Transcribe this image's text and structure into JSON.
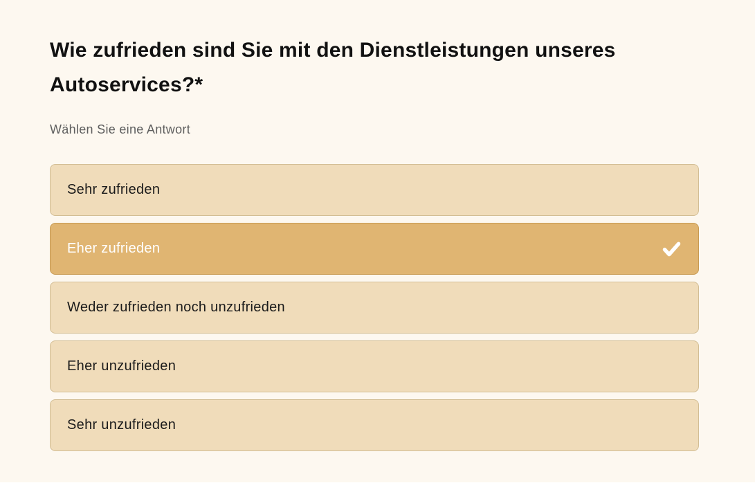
{
  "page": {
    "background_color": "#FDF8F0",
    "bottom_strip_color": "#FFFFFF"
  },
  "question": {
    "title": "Wie zufrieden sind Sie mit den Dienstleistungen unseres Autoservices?*",
    "instruction": "Wählen Sie eine Antwort",
    "selected_answer": "Eher zufrieden"
  },
  "options": [
    {
      "label": "Sehr zufrieden",
      "selected": false
    },
    {
      "label": "Eher zufrieden",
      "selected": true
    },
    {
      "label": "Weder zufrieden noch unzufrieden",
      "selected": false
    },
    {
      "label": "Eher unzufrieden",
      "selected": false
    },
    {
      "label": "Sehr unzufrieden",
      "selected": false
    }
  ],
  "icons": {
    "selected_check": "check-icon"
  },
  "colors": {
    "page_bg": "#FDF8F0",
    "bottom_strip": "#FFFFFF",
    "title_text": "#111111",
    "instruction_text": "#5E5E5E",
    "option_bg": "#F0DCBA",
    "option_border": "#D2BD94",
    "option_text": "#1B1B1B",
    "option_selected_bg": "#E0B572",
    "option_selected_border": "#C79A52",
    "option_selected_text": "#FFFFFF",
    "checkmark": "#FFFFFF"
  }
}
